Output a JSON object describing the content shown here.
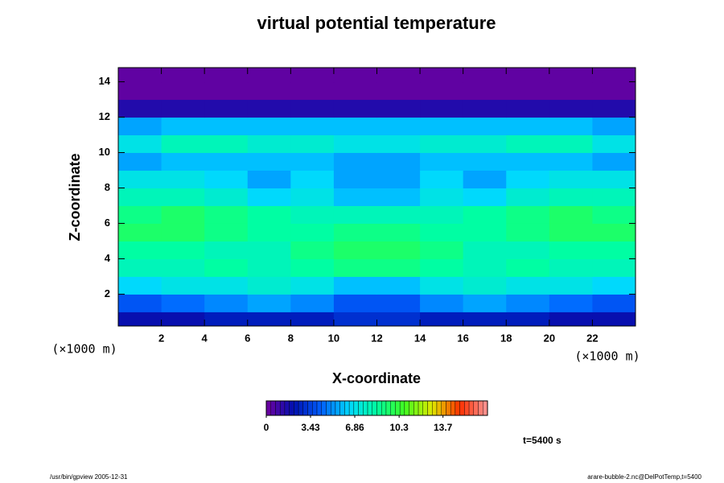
{
  "chart_data": {
    "type": "heatmap",
    "title": "virtual potential temperature",
    "x_label": "X-coordinate",
    "y_label": "Z-coordinate",
    "x_unit": "(×1000 m)",
    "y_unit": "(×1000 m)",
    "x": [
      1,
      3,
      5,
      7,
      9,
      11,
      13,
      15,
      17,
      19,
      21,
      23
    ],
    "y": [
      0.5,
      1.5,
      2.5,
      3.5,
      4.5,
      5.5,
      6.5,
      7.5,
      8.5,
      9.5,
      10.5,
      11.5,
      12.5,
      13.5,
      14.5
    ],
    "values": [
      [
        2,
        2,
        2.5,
        2.5,
        2.5,
        3,
        3,
        2.5,
        2.5,
        2.5,
        2,
        2
      ],
      [
        4,
        4.5,
        5,
        5.5,
        5,
        4,
        4,
        5,
        5.5,
        5,
        4.5,
        4
      ],
      [
        6.5,
        7,
        7,
        7.5,
        7,
        6,
        6,
        7,
        7.5,
        7,
        7,
        6.5
      ],
      [
        8,
        8,
        8.5,
        8,
        8.5,
        9,
        9,
        8.5,
        8,
        8.5,
        8,
        8
      ],
      [
        8.5,
        8.5,
        8,
        8,
        9,
        9.5,
        9.5,
        9,
        8,
        8,
        8.5,
        8.5
      ],
      [
        9.5,
        9.5,
        9,
        8.5,
        8.5,
        9,
        9,
        8.5,
        8.5,
        9,
        9.5,
        9.5
      ],
      [
        9,
        9.5,
        9,
        8.5,
        8,
        8,
        8,
        8,
        8.5,
        9,
        9.5,
        9
      ],
      [
        8,
        8,
        7.5,
        6.5,
        7,
        6,
        6,
        7,
        6.5,
        7.5,
        8,
        8
      ],
      [
        7,
        7,
        6.5,
        5.5,
        6.5,
        5.5,
        5.5,
        6.5,
        5.5,
        6.5,
        7,
        7
      ],
      [
        5.5,
        6,
        6,
        6,
        6,
        5.5,
        5.5,
        6,
        6,
        6,
        6,
        5.5
      ],
      [
        7,
        8,
        8,
        7.5,
        7.5,
        7,
        7,
        7.5,
        7.5,
        8,
        8,
        7
      ],
      [
        5.5,
        6,
        6,
        6,
        6,
        6,
        6,
        6,
        6,
        6,
        6,
        5.5
      ],
      [
        1.5,
        1.5,
        1.5,
        1.5,
        1.5,
        1.5,
        1.5,
        1.5,
        1.5,
        1.5,
        1.5,
        1.5
      ],
      [
        0.3,
        0.3,
        0.3,
        0.3,
        0.3,
        0.3,
        0.3,
        0.3,
        0.3,
        0.3,
        0.3,
        0.3
      ],
      [
        0.3,
        0.3,
        0.3,
        0.3,
        0.3,
        0.3,
        0.3,
        0.3,
        0.3,
        0.3,
        0.3,
        0.3
      ]
    ],
    "xlim": [
      0,
      24
    ],
    "ylim": [
      0.2,
      14.8
    ],
    "xticks": [
      2,
      4,
      6,
      8,
      10,
      12,
      14,
      16,
      18,
      20,
      22
    ],
    "yticks": [
      2,
      4,
      6,
      8,
      10,
      12,
      14
    ],
    "colorbar": {
      "lim": [
        0,
        17.15
      ],
      "ticks": [
        0,
        3.43,
        6.86,
        10.3,
        13.7
      ],
      "colors": [
        "#7000a0",
        "#0010b0",
        "#0060ff",
        "#00d8ff",
        "#00ffa0",
        "#40ff20",
        "#e0e800",
        "#ff3000",
        "#ff9898"
      ]
    },
    "annotation": "t=5400 s",
    "footer_left": "/usr/bin/gpview 2005-12-31",
    "footer_right": "arare-bubble-2.nc@DelPotTemp,t=5400"
  }
}
